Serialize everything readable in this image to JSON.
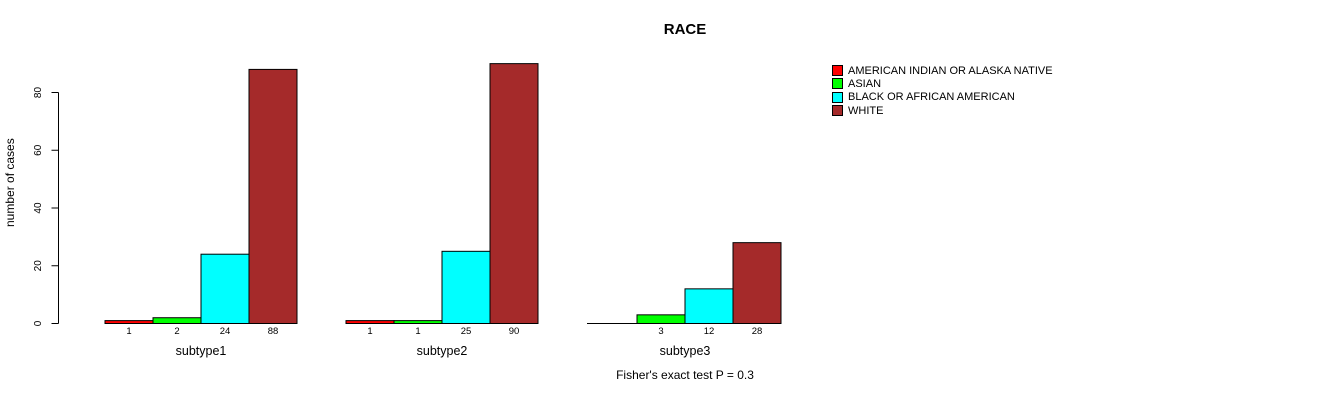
{
  "chart_data": {
    "type": "bar",
    "title": "RACE",
    "xlabel": "",
    "ylabel": "number of cases",
    "footnote": "Fisher's exact test P = 0.3",
    "categories": [
      "subtype1",
      "subtype2",
      "subtype3"
    ],
    "series": [
      {
        "name": "AMERICAN INDIAN OR ALASKA NATIVE",
        "color": "#FF0000",
        "values": [
          1,
          1,
          0
        ]
      },
      {
        "name": "ASIAN",
        "color": "#00FF00",
        "values": [
          2,
          1,
          3
        ]
      },
      {
        "name": "BLACK OR AFRICAN AMERICAN",
        "color": "#00FFFF",
        "values": [
          24,
          25,
          12
        ]
      },
      {
        "name": "WHITE",
        "color": "#A52A2A",
        "values": [
          88,
          90,
          28
        ]
      }
    ],
    "bar_labels": [
      [
        "1",
        "2",
        "24",
        "88"
      ],
      [
        "1",
        "1",
        "25",
        "90"
      ],
      [
        "",
        "3",
        "12",
        "28"
      ]
    ],
    "yticks": [
      0,
      20,
      40,
      60,
      80
    ],
    "ylim": [
      0,
      93
    ],
    "grid": false,
    "legend_position": "right-top",
    "axis_color": "#000000",
    "bar_border_color": "#000000",
    "background_color": "#FFFFFF"
  }
}
